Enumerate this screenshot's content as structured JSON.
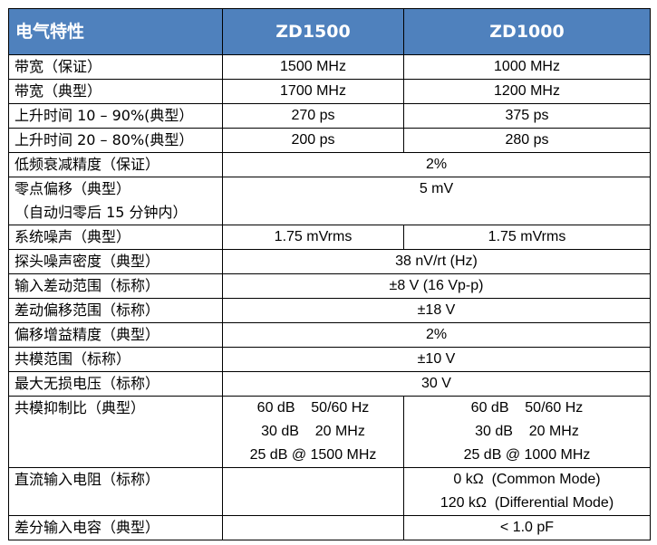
{
  "header": {
    "param": "电气特性",
    "model1": "ZD1500",
    "model2": "ZD1000"
  },
  "rows": [
    {
      "param": [
        "带宽（保证）"
      ],
      "v1": [
        "1500 MHz"
      ],
      "v2": [
        "1000 MHz"
      ]
    },
    {
      "param": [
        "带宽（典型）"
      ],
      "v1": [
        "1700 MHz"
      ],
      "v2": [
        "1200 MHz"
      ]
    },
    {
      "param": [
        "上升时间 10 – 90%(典型）"
      ],
      "v1": [
        "270 ps"
      ],
      "v2": [
        "375 ps"
      ]
    },
    {
      "param": [
        "上升时间 20 – 80%(典型）"
      ],
      "v1": [
        "200 ps"
      ],
      "v2": [
        "280 ps"
      ]
    },
    {
      "param": [
        "低频衰减精度（保证）"
      ],
      "merged": [
        "2%"
      ]
    },
    {
      "param": [
        "零点偏移（典型）",
        "（自动归零后 15 分钟内）"
      ],
      "merged": [
        "5 mV",
        ""
      ]
    },
    {
      "param": [
        "系统噪声（典型）"
      ],
      "v1": [
        "1.75 mVrms"
      ],
      "v2": [
        "1.75 mVrms"
      ]
    },
    {
      "param": [
        "探头噪声密度（典型）"
      ],
      "merged": [
        "38 nV/rt (Hz)"
      ]
    },
    {
      "param": [
        "输入差动范围（标称）"
      ],
      "merged": [
        "±8 V (16 Vp-p)"
      ]
    },
    {
      "param": [
        "差动偏移范围（标称）"
      ],
      "merged": [
        "±18 V"
      ]
    },
    {
      "param": [
        "偏移增益精度（典型）"
      ],
      "merged": [
        "2%"
      ]
    },
    {
      "param": [
        "共模范围（标称）"
      ],
      "merged": [
        "±10 V"
      ]
    },
    {
      "param": [
        "最大无损电压（标称）"
      ],
      "merged": [
        "30 V"
      ]
    },
    {
      "param": [
        "共模抑制比（典型）",
        "",
        ""
      ],
      "v1": [
        "60 dB    50/60 Hz",
        "30 dB    20 MHz",
        "25 dB @ 1500 MHz"
      ],
      "v2": [
        "60 dB    50/60 Hz",
        "30 dB    20 MHz",
        "25 dB @ 1000 MHz"
      ]
    },
    {
      "param": [
        "直流输入电阻（标称）",
        ""
      ],
      "v1": [
        "",
        ""
      ],
      "v2": [
        "0 kΩ  (Common Mode)",
        "120 kΩ  (Differential Mode)"
      ]
    },
    {
      "param": [
        "差分输入电容（典型）"
      ],
      "v1": [
        ""
      ],
      "v2": [
        "< 1.0 pF"
      ]
    }
  ]
}
